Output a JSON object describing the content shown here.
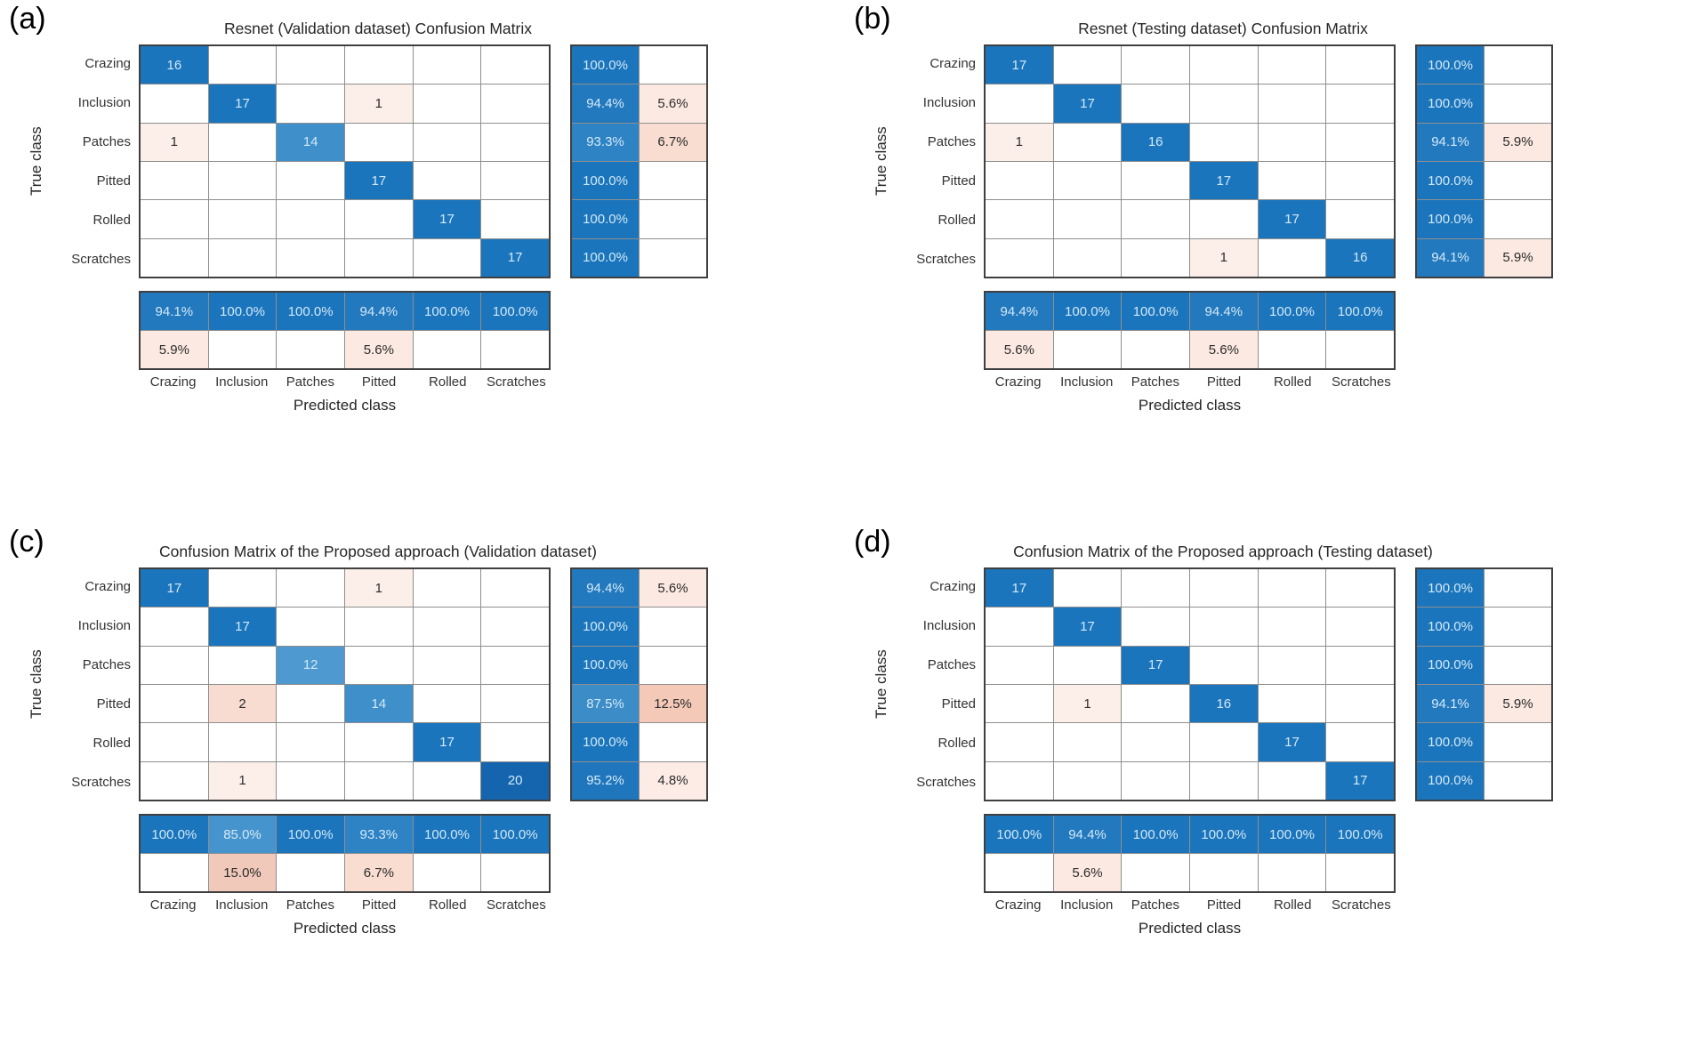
{
  "colors": {
    "diag_blue": "#1b75bc",
    "light_text": "#d3e9f7",
    "dark_text": "#2b2b2b",
    "grid_line": "#8e8e8e",
    "frame": "#3f3f3f",
    "count_bg": {
      "1": "#fceee8",
      "2": "#f8dcd1",
      "12": "#4e9ad0",
      "14": "#3f90ca",
      "16": "#1b75bc",
      "17": "#1b75bc",
      "20": "#1465ad"
    },
    "pct_blue_bg": {
      "85.0": "#4694cd",
      "87.5": "#3c8cc8",
      "93.3": "#2e83c5",
      "94.1": "#2379be",
      "94.4": "#2379be",
      "95.2": "#2076bd",
      "100.0": "#1b75bc"
    },
    "pct_pink_bg": {
      "4.8": "#fcece5",
      "5.6": "#fceae2",
      "5.9": "#fceae2",
      "6.7": "#f8ddd0",
      "12.5": "#f4c9b8",
      "15.0": "#f0c9ba"
    }
  },
  "chart_data": [
    {
      "id": "a",
      "panel_label": "(a)",
      "type": "heatmap",
      "title": "Resnet (Validation dataset) Confusion Matrix",
      "xlabel": "Predicted class",
      "ylabel": "True class",
      "classes": [
        "Crazing",
        "Inclusion",
        "Patches",
        "Pitted",
        "Rolled",
        "Scratches"
      ],
      "matrix": [
        [
          16,
          0,
          0,
          0,
          0,
          0
        ],
        [
          0,
          17,
          0,
          1,
          0,
          0
        ],
        [
          1,
          0,
          14,
          0,
          0,
          0
        ],
        [
          0,
          0,
          0,
          17,
          0,
          0
        ],
        [
          0,
          0,
          0,
          0,
          17,
          0
        ],
        [
          0,
          0,
          0,
          0,
          0,
          17
        ]
      ],
      "row_summary": [
        [
          100.0,
          null
        ],
        [
          94.4,
          5.6
        ],
        [
          93.3,
          6.7
        ],
        [
          100.0,
          null
        ],
        [
          100.0,
          null
        ],
        [
          100.0,
          null
        ]
      ],
      "col_summary": [
        [
          94.1,
          100.0,
          100.0,
          94.4,
          100.0,
          100.0
        ],
        [
          5.9,
          null,
          null,
          5.6,
          null,
          null
        ]
      ]
    },
    {
      "id": "b",
      "panel_label": "(b)",
      "type": "heatmap",
      "title": "Resnet (Testing dataset) Confusion Matrix",
      "xlabel": "Predicted class",
      "ylabel": "True class",
      "classes": [
        "Crazing",
        "Inclusion",
        "Patches",
        "Pitted",
        "Rolled",
        "Scratches"
      ],
      "matrix": [
        [
          17,
          0,
          0,
          0,
          0,
          0
        ],
        [
          0,
          17,
          0,
          0,
          0,
          0
        ],
        [
          1,
          0,
          16,
          0,
          0,
          0
        ],
        [
          0,
          0,
          0,
          17,
          0,
          0
        ],
        [
          0,
          0,
          0,
          0,
          17,
          0
        ],
        [
          0,
          0,
          0,
          1,
          0,
          16
        ]
      ],
      "row_summary": [
        [
          100.0,
          null
        ],
        [
          100.0,
          null
        ],
        [
          94.1,
          5.9
        ],
        [
          100.0,
          null
        ],
        [
          100.0,
          null
        ],
        [
          94.1,
          5.9
        ]
      ],
      "col_summary": [
        [
          94.4,
          100.0,
          100.0,
          94.4,
          100.0,
          100.0
        ],
        [
          5.6,
          null,
          null,
          5.6,
          null,
          null
        ]
      ]
    },
    {
      "id": "c",
      "panel_label": "(c)",
      "type": "heatmap",
      "title": "Confusion Matrix of the Proposed approach (Validation dataset)",
      "xlabel": "Predicted class",
      "ylabel": "True class",
      "classes": [
        "Crazing",
        "Inclusion",
        "Patches",
        "Pitted",
        "Rolled",
        "Scratches"
      ],
      "matrix": [
        [
          17,
          0,
          0,
          1,
          0,
          0
        ],
        [
          0,
          17,
          0,
          0,
          0,
          0
        ],
        [
          0,
          0,
          12,
          0,
          0,
          0
        ],
        [
          0,
          2,
          0,
          14,
          0,
          0
        ],
        [
          0,
          0,
          0,
          0,
          17,
          0
        ],
        [
          0,
          1,
          0,
          0,
          0,
          20
        ]
      ],
      "row_summary": [
        [
          94.4,
          5.6
        ],
        [
          100.0,
          null
        ],
        [
          100.0,
          null
        ],
        [
          87.5,
          12.5
        ],
        [
          100.0,
          null
        ],
        [
          95.2,
          4.8
        ]
      ],
      "col_summary": [
        [
          100.0,
          85.0,
          100.0,
          93.3,
          100.0,
          100.0
        ],
        [
          null,
          15.0,
          null,
          6.7,
          null,
          null
        ]
      ]
    },
    {
      "id": "d",
      "panel_label": "(d)",
      "type": "heatmap",
      "title": "Confusion Matrix of the Proposed approach (Testing dataset)",
      "xlabel": "Predicted class",
      "ylabel": "True class",
      "classes": [
        "Crazing",
        "Inclusion",
        "Patches",
        "Pitted",
        "Rolled",
        "Scratches"
      ],
      "matrix": [
        [
          17,
          0,
          0,
          0,
          0,
          0
        ],
        [
          0,
          17,
          0,
          0,
          0,
          0
        ],
        [
          0,
          0,
          17,
          0,
          0,
          0
        ],
        [
          0,
          1,
          0,
          16,
          0,
          0
        ],
        [
          0,
          0,
          0,
          0,
          17,
          0
        ],
        [
          0,
          0,
          0,
          0,
          0,
          17
        ]
      ],
      "row_summary": [
        [
          100.0,
          null
        ],
        [
          100.0,
          null
        ],
        [
          100.0,
          null
        ],
        [
          94.1,
          5.9
        ],
        [
          100.0,
          null
        ],
        [
          100.0,
          null
        ]
      ],
      "col_summary": [
        [
          100.0,
          94.4,
          100.0,
          100.0,
          100.0,
          100.0
        ],
        [
          null,
          5.6,
          null,
          null,
          null,
          null
        ]
      ]
    }
  ]
}
